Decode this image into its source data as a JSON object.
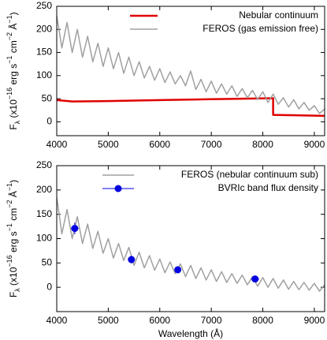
{
  "chart_data": [
    {
      "type": "line",
      "ylabel": [
        "F",
        "λ",
        " (x10",
        "−16",
        " erg s",
        "−1",
        " cm",
        "−2",
        " Å",
        "−1",
        ")"
      ],
      "xlim": [
        4000,
        9200
      ],
      "xticks": [
        4000,
        5000,
        6000,
        7000,
        8000,
        9000
      ],
      "ylim": [
        -30,
        250
      ],
      "yticks": [
        0,
        50,
        100,
        150,
        200,
        250
      ],
      "legend_position": "upper right",
      "series": [
        {
          "name": "Nebular continuum",
          "color": "#e00000",
          "width": 2.5,
          "x": [
            4000,
            4300,
            5000,
            6000,
            7000,
            8200,
            8200,
            9200
          ],
          "values": [
            47,
            44,
            45,
            47,
            49,
            51,
            15,
            13
          ]
        },
        {
          "name": "FEROS (gas emission free)",
          "color": "#a0a0a0",
          "width": 1.5,
          "x": [
            4000,
            4100,
            4200,
            4300,
            4400,
            4500,
            4600,
            4700,
            4800,
            4900,
            5000,
            5100,
            5200,
            5300,
            5400,
            5500,
            5600,
            5700,
            5800,
            5900,
            6000,
            6100,
            6200,
            6300,
            6400,
            6500,
            6600,
            6700,
            6800,
            6900,
            7000,
            7100,
            7200,
            7300,
            7400,
            7500,
            7600,
            7700,
            7800,
            7900,
            8000,
            8100,
            8200,
            8300,
            8400,
            8500,
            8600,
            8700,
            8800,
            8900,
            9000,
            9100,
            9200
          ],
          "values": [
            230,
            160,
            215,
            150,
            200,
            140,
            185,
            130,
            170,
            120,
            160,
            115,
            150,
            105,
            140,
            100,
            130,
            95,
            120,
            90,
            115,
            85,
            108,
            82,
            100,
            78,
            110,
            70,
            92,
            65,
            88,
            62,
            82,
            60,
            78,
            55,
            72,
            52,
            68,
            48,
            65,
            42,
            60,
            38,
            52,
            32,
            48,
            28,
            42,
            25,
            35,
            18,
            28
          ]
        }
      ]
    },
    {
      "type": "line",
      "ylabel": [
        "F",
        "λ",
        " (x10",
        "−16",
        " erg s",
        "−1",
        " cm",
        "−2",
        " Å",
        "−1",
        ")"
      ],
      "xlabel": "Wavelength (Å)",
      "xlim": [
        4000,
        9200
      ],
      "xticks": [
        4000,
        5000,
        6000,
        7000,
        8000,
        9000
      ],
      "ylim": [
        -50,
        250
      ],
      "yticks": [
        0,
        50,
        100,
        150,
        200,
        250
      ],
      "legend_position": "upper right",
      "series": [
        {
          "name": "FEROS (nebular continuum sub)",
          "color": "#a0a0a0",
          "width": 1.5,
          "x": [
            4000,
            4100,
            4200,
            4300,
            4400,
            4500,
            4600,
            4700,
            4800,
            4900,
            5000,
            5100,
            5200,
            5300,
            5400,
            5500,
            5600,
            5700,
            5800,
            5900,
            6000,
            6100,
            6200,
            6300,
            6400,
            6500,
            6600,
            6700,
            6800,
            6900,
            7000,
            7100,
            7200,
            7300,
            7400,
            7500,
            7600,
            7700,
            7800,
            7900,
            8000,
            8100,
            8200,
            8300,
            8400,
            8500,
            8600,
            8700,
            8800,
            8900,
            9000,
            9100,
            9200
          ],
          "values": [
            185,
            110,
            160,
            100,
            145,
            90,
            130,
            80,
            115,
            70,
            100,
            60,
            90,
            55,
            82,
            45,
            72,
            40,
            65,
            35,
            58,
            30,
            52,
            28,
            48,
            22,
            45,
            18,
            40,
            15,
            36,
            12,
            32,
            10,
            28,
            8,
            25,
            5,
            22,
            2,
            20,
            0,
            18,
            -2,
            15,
            -4,
            12,
            -5,
            10,
            -6,
            8,
            -8,
            5
          ]
        },
        {
          "name": "BVRIc band flux density",
          "color": "#0000e0",
          "kind": "points",
          "x": [
            4350,
            5450,
            6350,
            7850
          ],
          "xerr": [
            75,
            70,
            60,
            80
          ],
          "values": [
            121,
            57,
            36,
            17
          ],
          "yerr": [
            12,
            8,
            6,
            5
          ]
        }
      ]
    }
  ]
}
